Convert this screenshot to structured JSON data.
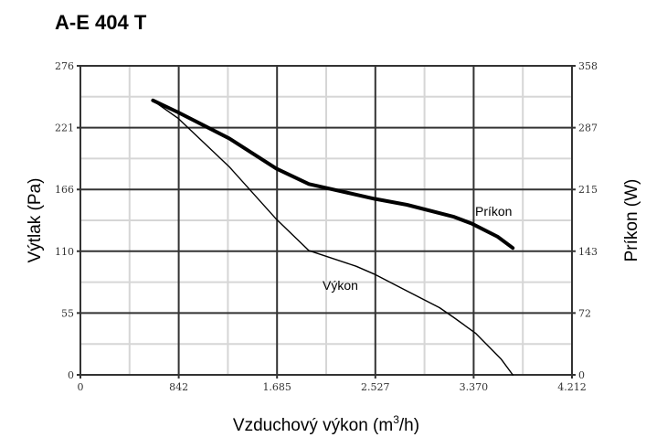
{
  "title": "A-E 404 T",
  "chart_data": {
    "type": "line",
    "title": "A-E 404 T",
    "xlabel": "Vzduchový výkon (m³/h)",
    "xlabel_main": "Vzduchový výkon (m",
    "xlabel_sup": "3",
    "xlabel_end": "/h)",
    "ylabel": "Výtlak (Pa)",
    "y2label": "Príkon (W)",
    "xlim": [
      0,
      4212
    ],
    "ylim": [
      0,
      276
    ],
    "y2lim": [
      0,
      358
    ],
    "xticks": [
      "0",
      "842",
      "1.685",
      "2.527",
      "3.370",
      "4.212"
    ],
    "yticks": [
      "0",
      "55",
      "110",
      "166",
      "221",
      "276"
    ],
    "y2ticks": [
      "0",
      "72",
      "143",
      "215",
      "287",
      "358"
    ],
    "grid": true,
    "series": [
      {
        "name": "Výkon",
        "axis": "left",
        "stroke": "thin",
        "x": [
          622,
          839,
          1274,
          1679,
          1958,
          2362,
          2518,
          2798,
          3077,
          3202,
          3388,
          3606,
          3705
        ],
        "y": [
          245,
          229,
          186,
          139,
          111,
          97,
          90,
          75,
          60,
          51,
          37,
          14,
          0
        ]
      },
      {
        "name": "Príkon",
        "axis": "right",
        "stroke": "thick",
        "x": [
          622,
          839,
          1274,
          1679,
          1958,
          2518,
          2798,
          3202,
          3357,
          3575,
          3705
        ],
        "y": [
          318,
          304,
          274,
          239,
          221,
          204,
          197,
          183,
          175,
          160,
          147
        ]
      }
    ]
  }
}
